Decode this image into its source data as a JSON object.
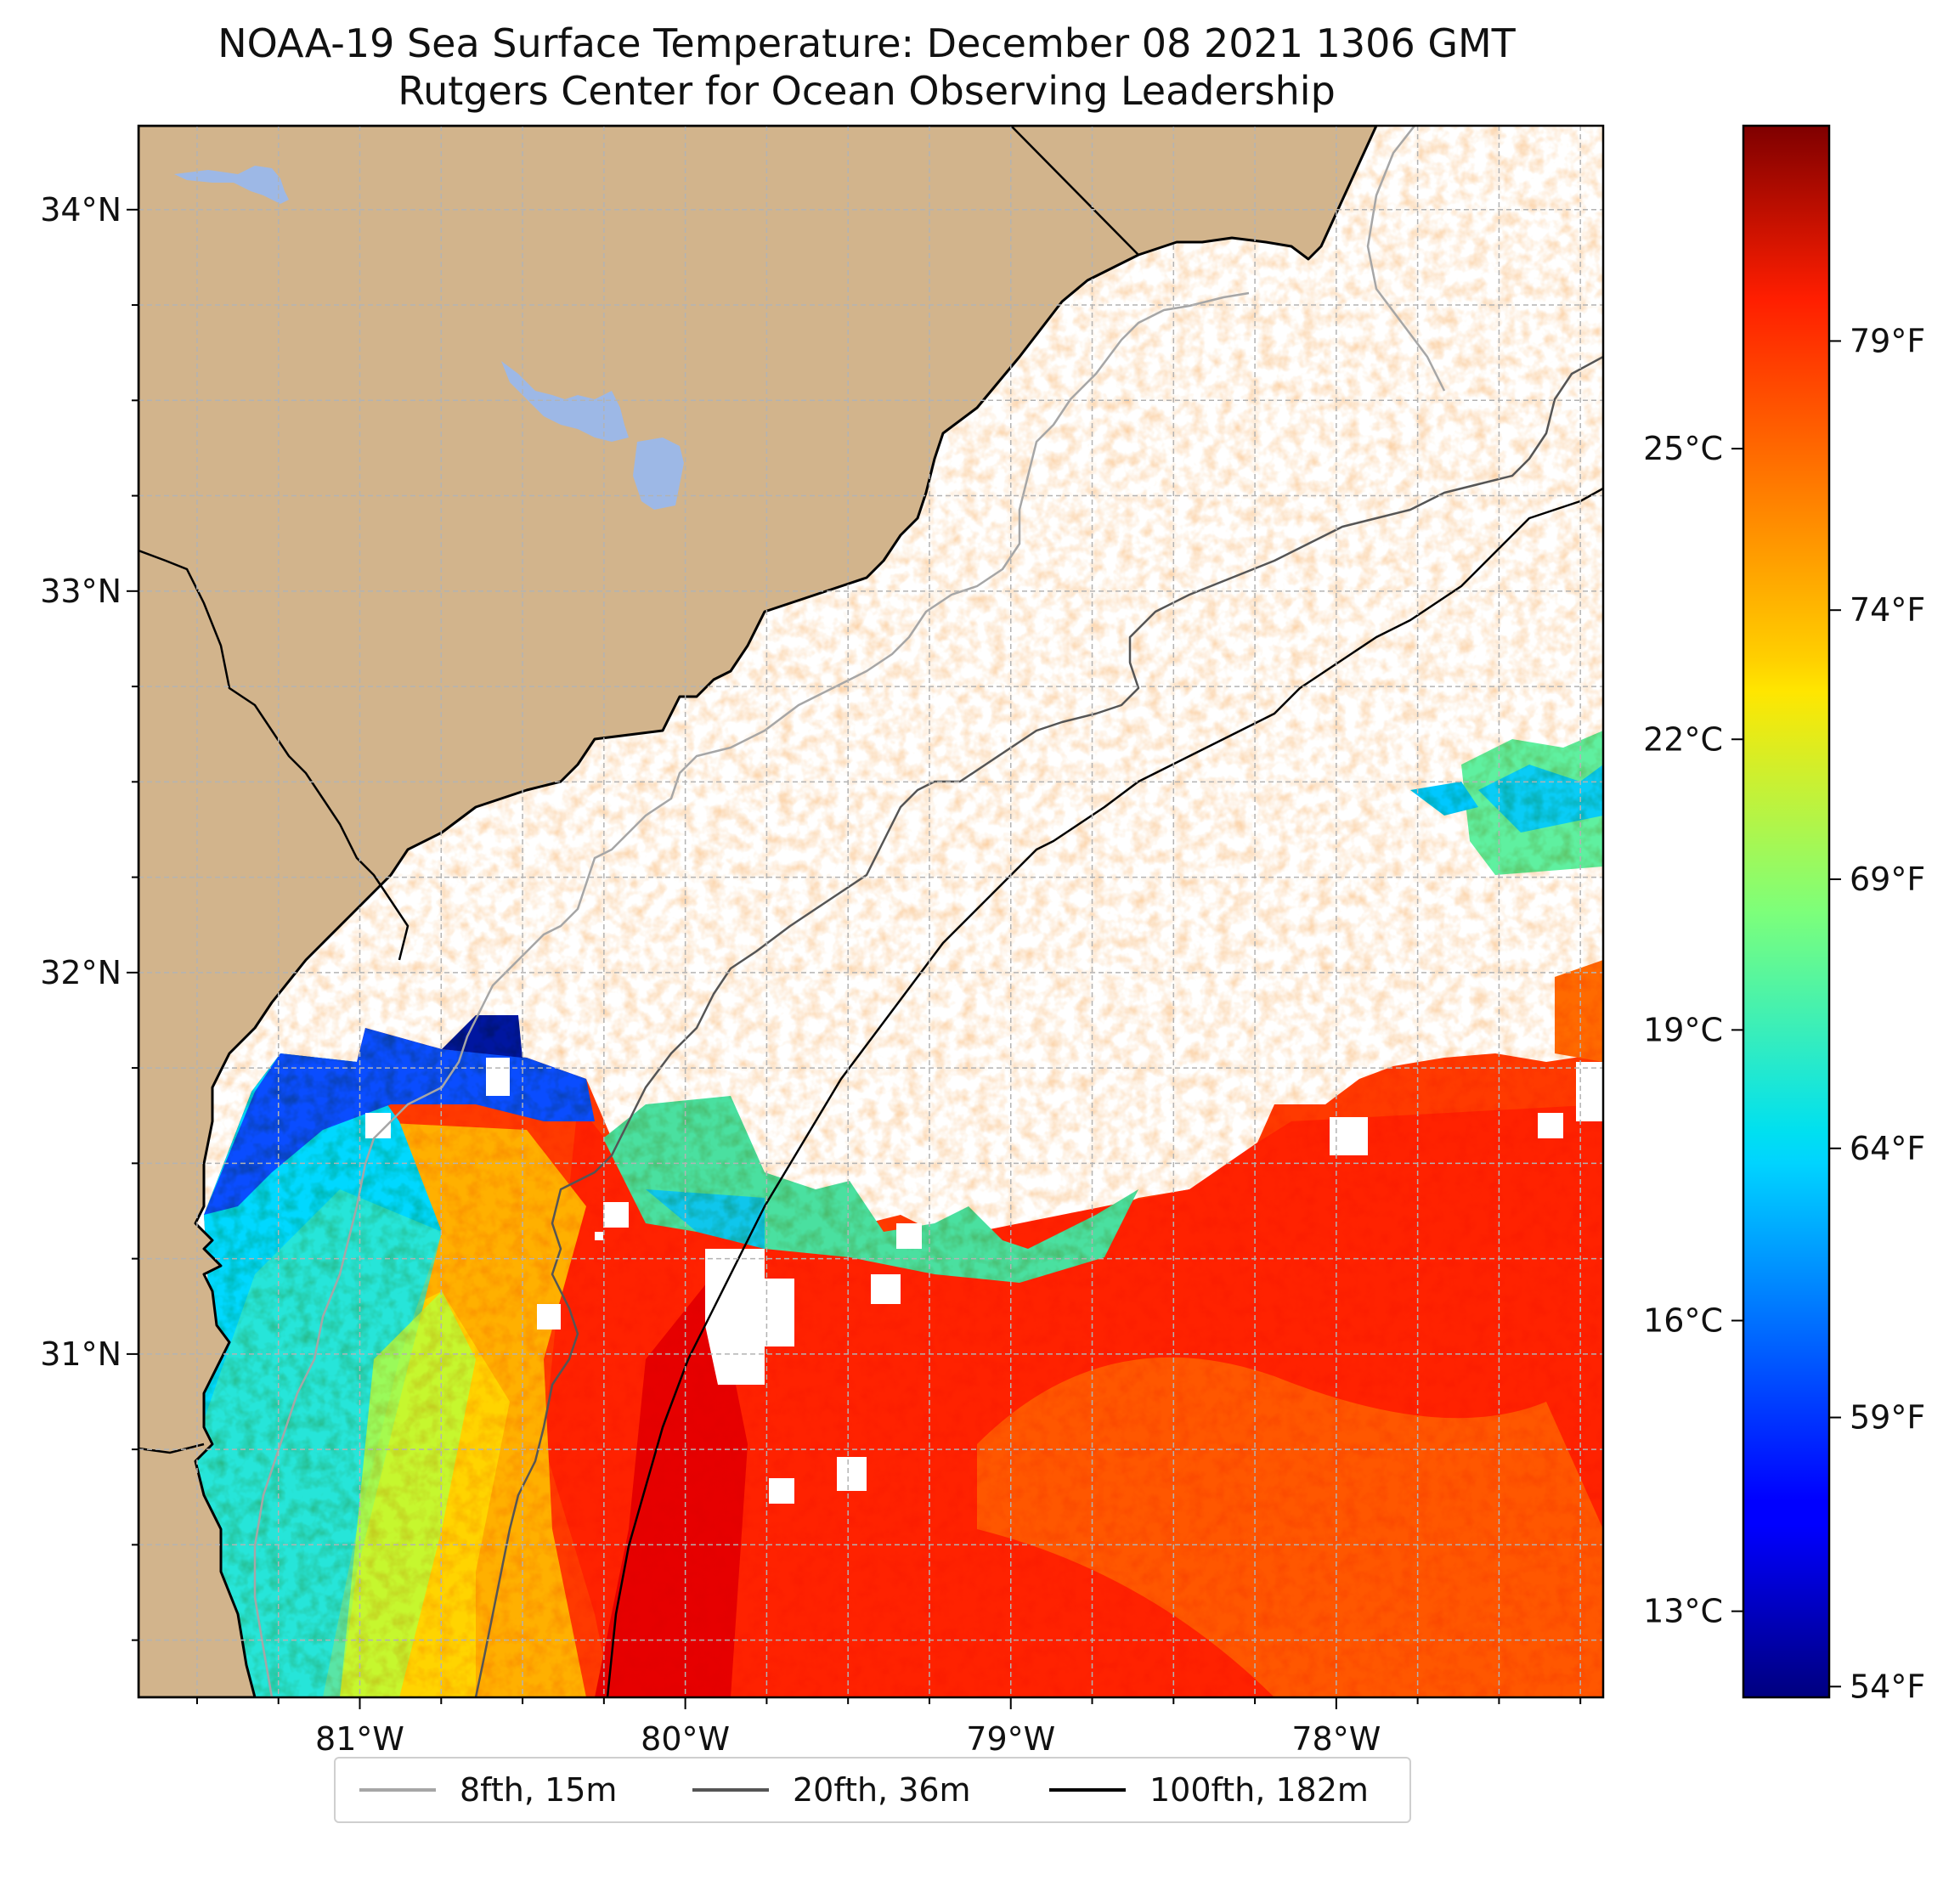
{
  "title": {
    "line1": "NOAA-19 Sea Surface Temperature: December 08 2021 1306 GMT",
    "line2": "Rutgers Center for Ocean Observing Leadership"
  },
  "map": {
    "lon_range": [
      -81.68,
      -77.18
    ],
    "lat_range": [
      30.1,
      34.22
    ],
    "lat_ticks": [
      {
        "value": 34,
        "label": "34°N"
      },
      {
        "value": 33,
        "label": "33°N"
      },
      {
        "value": 32,
        "label": "32°N"
      },
      {
        "value": 31,
        "label": "31°N"
      }
    ],
    "lon_ticks": [
      {
        "value": -81,
        "label": "81°W"
      },
      {
        "value": -80,
        "label": "80°W"
      },
      {
        "value": -79,
        "label": "79°W"
      },
      {
        "value": -78,
        "label": "78°W"
      }
    ],
    "colors": {
      "land": "#d2b48c",
      "water_bodies": "#9db8e6",
      "grid": "#b3b3b3"
    }
  },
  "colorbar": {
    "colormap": "jet",
    "range_f": [
      53.8,
      83.0
    ],
    "fahrenheit_ticks": [
      {
        "value": 79,
        "label": "79°F"
      },
      {
        "value": 74,
        "label": "74°F"
      },
      {
        "value": 69,
        "label": "69°F"
      },
      {
        "value": 64,
        "label": "64°F"
      },
      {
        "value": 59,
        "label": "59°F"
      },
      {
        "value": 54,
        "label": "54°F"
      }
    ],
    "celsius_ticks": [
      {
        "value": 25,
        "label": "25°C"
      },
      {
        "value": 22,
        "label": "22°C"
      },
      {
        "value": 19,
        "label": "19°C"
      },
      {
        "value": 16,
        "label": "16°C"
      },
      {
        "value": 13,
        "label": "13°C"
      }
    ]
  },
  "legend": {
    "items": [
      {
        "label": "8fth, 15m",
        "color": "#a6a6a6"
      },
      {
        "label": "20fth, 36m",
        "color": "#555555"
      },
      {
        "label": "100fth, 182m",
        "color": "#000000"
      }
    ]
  }
}
